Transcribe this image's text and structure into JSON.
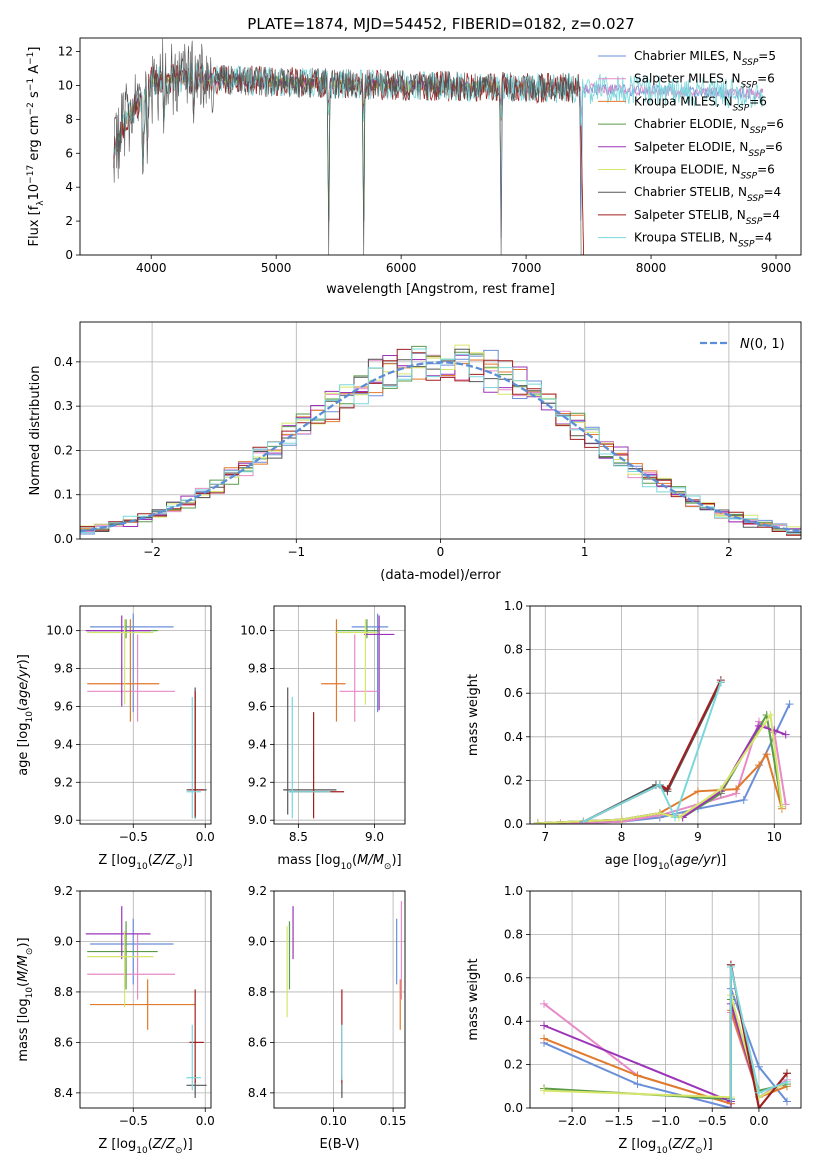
{
  "figure": {
    "title": "PLATE=1874, MJD=54452, FIBERID=0182, z=0.027"
  },
  "series": [
    {
      "name": "Chabrier MILES, N_SSP=5",
      "imf": "Chabrier",
      "lib": "MILES",
      "n": "5",
      "color": "#6a8fd8"
    },
    {
      "name": "Salpeter MILES, N_SSP=6",
      "imf": "Salpeter",
      "lib": "MILES",
      "n": "6",
      "color": "#e88ac8"
    },
    {
      "name": "Kroupa MILES, N_SSP=6",
      "imf": "Kroupa",
      "lib": "MILES",
      "n": "6",
      "color": "#e07a2c"
    },
    {
      "name": "Chabrier ELODIE, N_SSP=6",
      "imf": "Chabrier",
      "lib": "ELODIE",
      "n": "6",
      "color": "#5a9a4a"
    },
    {
      "name": "Salpeter ELODIE, N_SSP=6",
      "imf": "Salpeter",
      "lib": "ELODIE",
      "n": "6",
      "color": "#9b34b8"
    },
    {
      "name": "Kroupa ELODIE, N_SSP=6",
      "imf": "Kroupa",
      "lib": "ELODIE",
      "n": "6",
      "color": "#d6e66a"
    },
    {
      "name": "Chabrier STELIB, N_SSP=4",
      "imf": "Chabrier",
      "lib": "STELIB",
      "n": "4",
      "color": "#555555"
    },
    {
      "name": "Salpeter STELIB, N_SSP=4",
      "imf": "Salpeter",
      "lib": "STELIB",
      "n": "4",
      "color": "#a11f1f"
    },
    {
      "name": "Kroupa STELIB, N_SSP=4",
      "imf": "Kroupa",
      "lib": "STELIB",
      "n": "4",
      "color": "#7ad8dc"
    }
  ],
  "chart_data": [
    {
      "id": "spectrum",
      "type": "line",
      "xlabel": "wavelength [Angstrom, rest frame]",
      "ylabel": "Flux [f_λ 10^-17 erg cm^-2 s^-1 A^-1]",
      "xlim": [
        3430,
        9200
      ],
      "ylim": [
        0,
        12.8
      ],
      "xticks": [
        4000,
        5000,
        6000,
        7000,
        8000,
        9000
      ],
      "yticks": [
        0,
        2,
        4,
        6,
        8,
        10,
        12
      ],
      "data_range": [
        3700,
        8900
      ],
      "continuum": {
        "x": [
          3700,
          3800,
          3900,
          4000,
          4200,
          4500,
          5000,
          6000,
          7000,
          8000,
          8900
        ],
        "y": [
          6,
          8,
          9,
          10.2,
          10.5,
          10.4,
          10.2,
          10.0,
          9.9,
          9.7,
          9.5
        ]
      },
      "absorption": [
        {
          "x": 3934,
          "y": 2.3
        },
        {
          "x": 3969,
          "y": 4.5
        },
        {
          "x": 4102,
          "y": 6.5
        },
        {
          "x": 4340,
          "y": 7.2
        },
        {
          "x": 5420,
          "y": 0
        },
        {
          "x": 5700,
          "y": 0
        },
        {
          "x": 6800,
          "y": 0
        },
        {
          "x": 7440,
          "y": 0
        }
      ],
      "grid": false,
      "legend": "upper right"
    },
    {
      "id": "residuals",
      "type": "histogram",
      "xlabel": "(data-model)/error",
      "ylabel": "Normed distribution",
      "xlim": [
        -2.5,
        2.5
      ],
      "ylim": [
        0,
        0.49
      ],
      "xticks": [
        -2,
        -1,
        0,
        1,
        2
      ],
      "yticks": [
        0,
        0.1,
        0.2,
        0.3,
        0.4
      ],
      "bin_width": 0.1,
      "reference": {
        "name": "N(0,1)",
        "mean": 0,
        "sigma": 1
      },
      "grid": true,
      "legend": "upper right"
    },
    {
      "id": "age_vs_Z",
      "type": "errorbar",
      "xlabel": "Z [log10(Z/Z⊙)]",
      "ylabel": "age  [log10(age/yr)]",
      "xlim": [
        -0.87,
        0.04
      ],
      "ylim": [
        8.98,
        10.13
      ],
      "xticks": [
        -0.5,
        0.0
      ],
      "yticks": [
        9.0,
        9.2,
        9.4,
        9.6,
        9.8,
        10.0
      ],
      "points": [
        {
          "s": 0,
          "x": -0.5,
          "y": 10.02,
          "xerr": [
            0.3,
            0.28
          ],
          "yerr": [
            0.45,
            0.07
          ]
        },
        {
          "s": 1,
          "x": -0.47,
          "y": 9.68,
          "xerr": [
            0.35,
            0.26
          ],
          "yerr": [
            0.16,
            0.3
          ]
        },
        {
          "s": 2,
          "x": -0.52,
          "y": 9.72,
          "xerr": [
            0.3,
            0.2
          ],
          "yerr": [
            0.2,
            0.34
          ]
        },
        {
          "s": 3,
          "x": -0.55,
          "y": 10.0,
          "xerr": [
            0.27,
            0.22
          ],
          "yerr": [
            0.04,
            0.06
          ]
        },
        {
          "s": 4,
          "x": -0.58,
          "y": 10.0,
          "xerr": [
            0.25,
            0.2
          ],
          "yerr": [
            0.4,
            0.08
          ]
        },
        {
          "s": 5,
          "x": -0.56,
          "y": 9.99,
          "xerr": [
            0.26,
            0.2
          ],
          "yerr": [
            0.38,
            0.07
          ]
        },
        {
          "s": 6,
          "x": -0.07,
          "y": 9.16,
          "xerr": [
            0.06,
            0.08
          ],
          "yerr": [
            0.15,
            0.54
          ]
        },
        {
          "s": 7,
          "x": -0.07,
          "y": 9.16,
          "xerr": [
            0.04,
            0.06
          ],
          "yerr": [
            0.14,
            0.52
          ]
        },
        {
          "s": 8,
          "x": -0.09,
          "y": 9.15,
          "xerr": [
            0.04,
            0.06
          ],
          "yerr": [
            0.14,
            0.5
          ]
        }
      ]
    },
    {
      "id": "age_vs_mass",
      "type": "errorbar",
      "xlabel": "mass [log10(M/M⊙)]",
      "ylabel": "",
      "xlim": [
        8.34,
        9.2
      ],
      "ylim": [
        8.98,
        10.13
      ],
      "xticks": [
        8.5,
        9.0
      ],
      "yticks": [
        9.0,
        9.2,
        9.4,
        9.6,
        9.8,
        10.0
      ],
      "points": [
        {
          "s": 0,
          "x": 9.02,
          "y": 10.02,
          "xerr": [
            0.17,
            0.07
          ],
          "yerr": [
            0.45,
            0.07
          ]
        },
        {
          "s": 1,
          "x": 8.87,
          "y": 9.68,
          "xerr": [
            0.1,
            0.15
          ],
          "yerr": [
            0.16,
            0.3
          ]
        },
        {
          "s": 2,
          "x": 8.75,
          "y": 9.72,
          "xerr": [
            0.1,
            0.06
          ],
          "yerr": [
            0.2,
            0.34
          ]
        },
        {
          "s": 3,
          "x": 8.95,
          "y": 10.0,
          "xerr": [
            0.2,
            0.08
          ],
          "yerr": [
            0.04,
            0.06
          ]
        },
        {
          "s": 4,
          "x": 9.03,
          "y": 9.98,
          "xerr": [
            0.1,
            0.1
          ],
          "yerr": [
            0.4,
            0.1
          ]
        },
        {
          "s": 5,
          "x": 8.94,
          "y": 9.99,
          "xerr": [
            0.2,
            0.08
          ],
          "yerr": [
            0.38,
            0.07
          ]
        },
        {
          "s": 6,
          "x": 8.43,
          "y": 9.16,
          "xerr": [
            0.03,
            0.32
          ],
          "yerr": [
            0.13,
            0.54
          ]
        },
        {
          "s": 7,
          "x": 8.6,
          "y": 9.15,
          "xerr": [
            0.16,
            0.2
          ],
          "yerr": [
            0.14,
            0.42
          ]
        },
        {
          "s": 8,
          "x": 8.46,
          "y": 9.15,
          "xerr": [
            0.03,
            0.25
          ],
          "yerr": [
            0.14,
            0.5
          ]
        }
      ]
    },
    {
      "id": "weight_vs_age",
      "type": "line",
      "xlabel": "age  [log10(age/yr)]",
      "ylabel": "mass weight",
      "xlim": [
        6.8,
        10.35
      ],
      "ylim": [
        0,
        1.0
      ],
      "xticks": [
        7,
        8,
        9,
        10
      ],
      "yticks": [
        0.0,
        0.2,
        0.4,
        0.6,
        0.8,
        1.0
      ],
      "series": [
        {
          "s": 0,
          "x": [
            7.5,
            8.0,
            8.5,
            9.0,
            9.6,
            10.2
          ],
          "y": [
            0.005,
            0.01,
            0.03,
            0.07,
            0.11,
            0.55
          ]
        },
        {
          "s": 1,
          "x": [
            7.2,
            8.0,
            8.5,
            9.0,
            9.5,
            9.8,
            10.0,
            10.15
          ],
          "y": [
            0.003,
            0.01,
            0.04,
            0.09,
            0.14,
            0.47,
            0.42,
            0.09
          ]
        },
        {
          "s": 2,
          "x": [
            6.9,
            8.0,
            8.5,
            9.0,
            9.5,
            9.8,
            9.9,
            10.1
          ],
          "y": [
            0.003,
            0.02,
            0.05,
            0.15,
            0.16,
            0.27,
            0.32,
            0.07
          ]
        },
        {
          "s": 3,
          "x": [
            6.9,
            8.0,
            8.5,
            8.8,
            9.3,
            9.9,
            10.1
          ],
          "y": [
            0.003,
            0.02,
            0.05,
            0.03,
            0.14,
            0.5,
            0.08
          ]
        },
        {
          "s": 4,
          "x": [
            6.9,
            8.0,
            8.5,
            8.8,
            9.3,
            9.8,
            10.0,
            10.15
          ],
          "y": [
            0.003,
            0.02,
            0.05,
            0.03,
            0.15,
            0.45,
            0.43,
            0.41
          ]
        },
        {
          "s": 5,
          "x": [
            6.9,
            8.0,
            8.5,
            8.75,
            9.3,
            9.95,
            10.1
          ],
          "y": [
            0.003,
            0.02,
            0.05,
            0.03,
            0.16,
            0.5,
            0.08
          ]
        },
        {
          "s": 6,
          "x": [
            7.5,
            8.45,
            8.6,
            9.3
          ],
          "y": [
            0.01,
            0.18,
            0.15,
            0.65
          ]
        },
        {
          "s": 7,
          "x": [
            7.5,
            8.5,
            8.6,
            9.3
          ],
          "y": [
            0.01,
            0.18,
            0.16,
            0.66
          ]
        },
        {
          "s": 8,
          "x": [
            7.5,
            8.5,
            8.7,
            9.3
          ],
          "y": [
            0.01,
            0.18,
            0.03,
            0.65
          ]
        }
      ],
      "grid": true
    },
    {
      "id": "mass_vs_Z",
      "type": "errorbar",
      "xlabel": "Z [log10(Z/Z⊙)]",
      "ylabel": "mass [log10(M/M⊙)]",
      "xlim": [
        -0.87,
        0.04
      ],
      "ylim": [
        8.34,
        9.2
      ],
      "xticks": [
        -0.5,
        0.0
      ],
      "yticks": [
        8.4,
        8.6,
        8.8,
        9.0,
        9.2
      ],
      "points": [
        {
          "s": 0,
          "x": -0.5,
          "y": 8.99,
          "xerr": [
            0.3,
            0.28
          ],
          "yerr": [
            0.16,
            0.1
          ]
        },
        {
          "s": 1,
          "x": -0.47,
          "y": 8.87,
          "xerr": [
            0.35,
            0.26
          ],
          "yerr": [
            0.1,
            0.16
          ]
        },
        {
          "s": 2,
          "x": -0.4,
          "y": 8.75,
          "xerr": [
            0.4,
            0.33
          ],
          "yerr": [
            0.1,
            0.1
          ]
        },
        {
          "s": 3,
          "x": -0.55,
          "y": 8.96,
          "xerr": [
            0.27,
            0.22
          ],
          "yerr": [
            0.15,
            0.12
          ]
        },
        {
          "s": 4,
          "x": -0.58,
          "y": 9.03,
          "xerr": [
            0.25,
            0.2
          ],
          "yerr": [
            0.1,
            0.11
          ]
        },
        {
          "s": 5,
          "x": -0.56,
          "y": 8.94,
          "xerr": [
            0.26,
            0.2
          ],
          "yerr": [
            0.2,
            0.1
          ]
        },
        {
          "s": 6,
          "x": -0.07,
          "y": 8.43,
          "xerr": [
            0.06,
            0.08
          ],
          "yerr": [
            0.05,
            0.04
          ]
        },
        {
          "s": 7,
          "x": -0.07,
          "y": 8.6,
          "xerr": [
            0.04,
            0.06
          ],
          "yerr": [
            0.16,
            0.21
          ]
        },
        {
          "s": 8,
          "x": -0.09,
          "y": 8.46,
          "xerr": [
            0.04,
            0.06
          ],
          "yerr": [
            0.05,
            0.21
          ]
        }
      ]
    },
    {
      "id": "mass_vs_ebv",
      "type": "errorbar",
      "xlabel": "E(B-V)",
      "ylabel": "",
      "xlim": [
        0.05,
        0.16
      ],
      "ylim": [
        8.34,
        9.2
      ],
      "xticks": [
        0.1,
        0.15
      ],
      "yticks": [
        8.4,
        8.6,
        8.8,
        9.0,
        9.2
      ],
      "points": [
        {
          "s": 0,
          "x": 0.153,
          "y": 8.99,
          "yerr": [
            0.16,
            0.1
          ]
        },
        {
          "s": 1,
          "x": 0.157,
          "y": 8.87,
          "yerr": [
            0.1,
            0.29
          ]
        },
        {
          "s": 2,
          "x": 0.156,
          "y": 8.75,
          "yerr": [
            0.1,
            0.1
          ]
        },
        {
          "s": 3,
          "x": 0.063,
          "y": 8.96,
          "yerr": [
            0.15,
            0.12
          ]
        },
        {
          "s": 4,
          "x": 0.066,
          "y": 9.03,
          "yerr": [
            0.1,
            0.11
          ]
        },
        {
          "s": 5,
          "x": 0.061,
          "y": 8.94,
          "yerr": [
            0.24,
            0.12
          ]
        },
        {
          "s": 6,
          "x": 0.107,
          "y": 8.43,
          "yerr": [
            0.05,
            0.04
          ]
        },
        {
          "s": 7,
          "x": 0.107,
          "y": 8.6,
          "yerr": [
            0.16,
            0.21
          ]
        },
        {
          "s": 8,
          "x": 0.107,
          "y": 8.5,
          "yerr": [
            0.05,
            0.17
          ]
        }
      ]
    },
    {
      "id": "weight_vs_Z",
      "type": "line",
      "xlabel": "Z [log10(Z/Z⊙)]",
      "ylabel": "mass weight",
      "xlim": [
        -2.45,
        0.45
      ],
      "ylim": [
        0,
        1.0
      ],
      "xticks": [
        -2.0,
        -1.5,
        -1.0,
        -0.5,
        0.0
      ],
      "yticks": [
        0.0,
        0.2,
        0.4,
        0.6,
        0.8,
        1.0
      ],
      "series": [
        {
          "s": 0,
          "x": [
            -2.3,
            -1.3,
            -0.3,
            -0.3,
            0.0,
            0.3
          ],
          "y": [
            0.3,
            0.11,
            0.0,
            0.55,
            0.19,
            0.03
          ]
        },
        {
          "s": 1,
          "x": [
            -2.3,
            -1.3,
            -0.3,
            -0.3,
            0.0,
            0.3
          ],
          "y": [
            0.48,
            0.15,
            0.02,
            0.44,
            0.05,
            0.13
          ]
        },
        {
          "s": 2,
          "x": [
            -2.3,
            -1.3,
            -0.3,
            -0.3,
            0.0,
            0.3
          ],
          "y": [
            0.32,
            0.15,
            0.02,
            0.45,
            0.05,
            0.1
          ]
        },
        {
          "s": 3,
          "x": [
            -2.3,
            -0.3,
            -0.3,
            0.0,
            0.3
          ],
          "y": [
            0.09,
            0.04,
            0.5,
            0.08,
            0.11
          ]
        },
        {
          "s": 4,
          "x": [
            -2.3,
            -0.3,
            -0.3,
            0.0,
            0.3
          ],
          "y": [
            0.38,
            0.03,
            0.48,
            0.05,
            0.12
          ]
        },
        {
          "s": 5,
          "x": [
            -2.3,
            -0.3,
            -0.3,
            0.0,
            0.3
          ],
          "y": [
            0.08,
            0.05,
            0.52,
            0.05,
            0.12
          ]
        },
        {
          "s": 6,
          "x": [
            -0.3,
            -0.3,
            0.0,
            0.3
          ],
          "y": [
            0.04,
            0.66,
            0.0,
            0.16
          ]
        },
        {
          "s": 7,
          "x": [
            -0.3,
            -0.3,
            0.0,
            0.3
          ],
          "y": [
            0.04,
            0.66,
            0.0,
            0.16
          ]
        },
        {
          "s": 8,
          "x": [
            -0.3,
            -0.3,
            0.0,
            0.3
          ],
          "y": [
            0.04,
            0.65,
            0.07,
            0.12
          ]
        }
      ],
      "grid": true
    }
  ]
}
